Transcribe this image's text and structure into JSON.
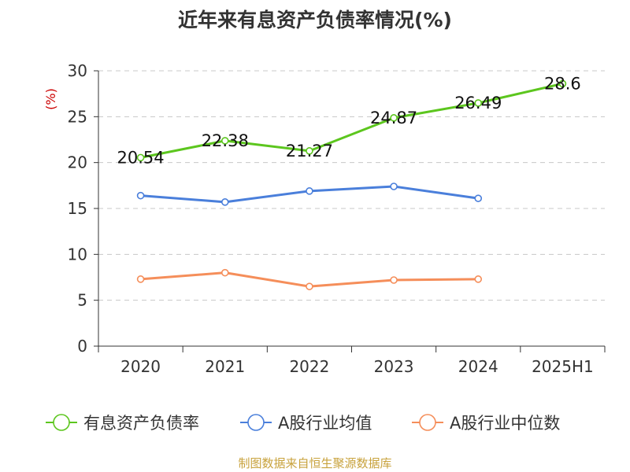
{
  "chart_data": {
    "type": "line",
    "title": "近年来有息资产负债率情况(%)",
    "ylabel": "(%)",
    "xlabel": "",
    "categories": [
      "2020",
      "2021",
      "2022",
      "2023",
      "2024",
      "2025H1"
    ],
    "y_ticks": [
      "0",
      "5",
      "10",
      "15",
      "20",
      "25",
      "30"
    ],
    "ylim": [
      0,
      30
    ],
    "grid": "horizontal dashed",
    "legend_position": "bottom",
    "series": [
      {
        "name": "有息资产负债率",
        "color": "#5cc61e",
        "values": [
          20.54,
          22.38,
          21.27,
          24.87,
          26.49,
          28.6
        ],
        "labels": [
          "20.54",
          "22.38",
          "21.27",
          "24.87",
          "26.49",
          "28.6"
        ]
      },
      {
        "name": "A股行业均值",
        "color": "#4a7fdb",
        "values": [
          16.4,
          15.7,
          16.9,
          17.4,
          16.1,
          null
        ]
      },
      {
        "name": "A股行业中位数",
        "color": "#f58e5a",
        "values": [
          7.3,
          8.0,
          6.5,
          7.2,
          7.3,
          null
        ]
      }
    ]
  },
  "footer": {
    "source": "制图数据来自恒生聚源数据库"
  }
}
